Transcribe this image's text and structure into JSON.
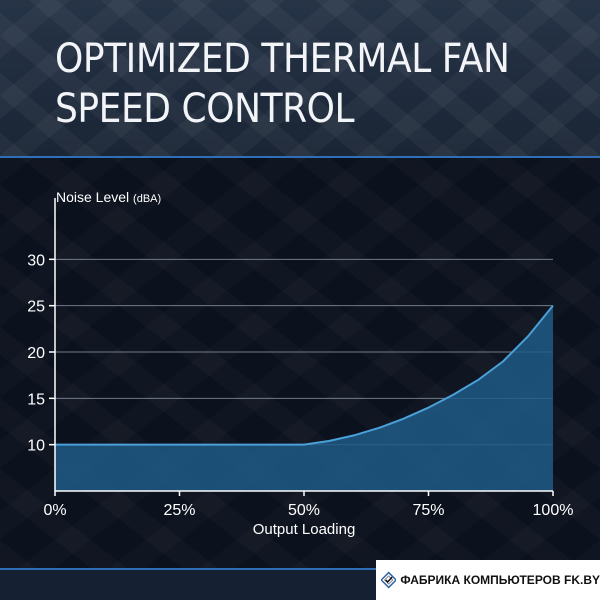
{
  "header": {
    "title": "OPTIMIZED THERMAL FAN SPEED CONTROL"
  },
  "chart_data": {
    "type": "area",
    "ylabel": "Noise Level",
    "ylabel_unit": "(dBA)",
    "xlabel": "Output Loading",
    "x": [
      0,
      10,
      20,
      30,
      40,
      50,
      55,
      60,
      65,
      70,
      75,
      80,
      85,
      90,
      95,
      100
    ],
    "series": [
      {
        "values": [
          10,
          10,
          10,
          10,
          10,
          10,
          10.4,
          11.0,
          11.8,
          12.8,
          14.0,
          15.4,
          17.0,
          19.0,
          21.7,
          25.0
        ]
      }
    ],
    "x_ticks": [
      "0%",
      "25%",
      "50%",
      "75%",
      "100%"
    ],
    "x_tick_values": [
      0,
      25,
      50,
      75,
      100
    ],
    "y_ticks": [
      "10",
      "15",
      "20",
      "25",
      "30"
    ],
    "y_tick_values": [
      10,
      15,
      20,
      25,
      30
    ],
    "xlim": [
      0,
      100
    ],
    "ylim": [
      5,
      35
    ],
    "grid": "horizontal",
    "colors": {
      "fill": "#1e5a86",
      "line": "#4aa0d8",
      "grid": "#8a94a4",
      "axis": "#ffffff"
    }
  },
  "footer": {
    "brand_text": "ФАБРИКА КОМПЬЮТЕРОВ FK.BY"
  }
}
